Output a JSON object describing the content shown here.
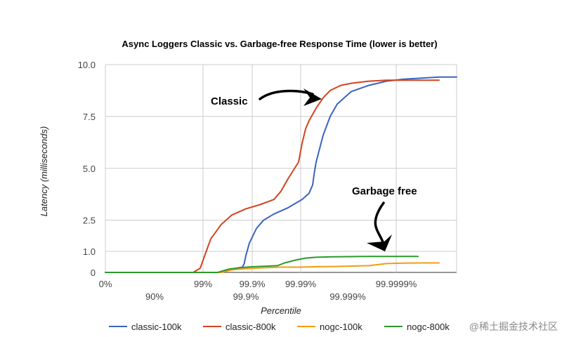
{
  "chart_data": {
    "type": "line",
    "title": "Async Loggers Classic vs. Garbage-free Response Time (lower is better)",
    "xlabel": "Percentile",
    "ylabel": "Latency (milliseconds)",
    "ylim": [
      0,
      10
    ],
    "y_ticks": [
      "0",
      "1.0",
      "2.5",
      "5.0",
      "7.5",
      "10.0"
    ],
    "x_ticks_upper": [
      "0%",
      "99%",
      "99.9%",
      "99.99%",
      "99.9999%"
    ],
    "x_ticks_lower": [
      "90%",
      "99.9%",
      "99.999%"
    ],
    "xlim": [
      0,
      1
    ],
    "grid": true,
    "legend_position": "bottom",
    "series": [
      {
        "name": "classic-100k",
        "color": "#3a64c0",
        "x": [
          0,
          0.33,
          0.36,
          0.39,
          0.395,
          0.4,
          0.41,
          0.43,
          0.45,
          0.48,
          0.52,
          0.56,
          0.58,
          0.59,
          0.595,
          0.6,
          0.62,
          0.64,
          0.66,
          0.7,
          0.75,
          0.8,
          0.85,
          0.9,
          0.95,
          1.0
        ],
        "y": [
          0,
          0,
          0.15,
          0.25,
          0.4,
          0.8,
          1.4,
          2.1,
          2.5,
          2.8,
          3.1,
          3.5,
          3.8,
          4.2,
          4.8,
          5.3,
          6.6,
          7.5,
          8.1,
          8.7,
          9.0,
          9.2,
          9.3,
          9.35,
          9.4,
          9.4
        ]
      },
      {
        "name": "classic-800k",
        "color": "#d2441f",
        "x": [
          0,
          0.25,
          0.27,
          0.285,
          0.3,
          0.33,
          0.36,
          0.4,
          0.44,
          0.48,
          0.5,
          0.52,
          0.55,
          0.56,
          0.57,
          0.58,
          0.6,
          0.62,
          0.64,
          0.67,
          0.7,
          0.75,
          0.8,
          0.85,
          0.9,
          0.95
        ],
        "y": [
          0,
          0,
          0.2,
          0.9,
          1.6,
          2.3,
          2.75,
          3.05,
          3.25,
          3.5,
          3.9,
          4.5,
          5.3,
          6.2,
          6.9,
          7.3,
          7.9,
          8.4,
          8.75,
          9.0,
          9.1,
          9.2,
          9.25,
          9.25,
          9.25,
          9.25
        ]
      },
      {
        "name": "nogc-100k",
        "color": "#f39c12",
        "x": [
          0,
          0.33,
          0.36,
          0.4,
          0.45,
          0.5,
          0.55,
          0.6,
          0.65,
          0.7,
          0.75,
          0.78,
          0.8,
          0.85,
          0.9,
          0.95
        ],
        "y": [
          0,
          0,
          0.12,
          0.18,
          0.22,
          0.25,
          0.25,
          0.27,
          0.28,
          0.3,
          0.32,
          0.38,
          0.42,
          0.44,
          0.45,
          0.45
        ]
      },
      {
        "name": "nogc-800k",
        "color": "#2a9a2a",
        "x": [
          0,
          0.32,
          0.35,
          0.38,
          0.42,
          0.49,
          0.51,
          0.54,
          0.57,
          0.6,
          0.65,
          0.7,
          0.75,
          0.8,
          0.85,
          0.89
        ],
        "y": [
          0,
          0,
          0.15,
          0.22,
          0.27,
          0.32,
          0.45,
          0.58,
          0.68,
          0.72,
          0.74,
          0.75,
          0.76,
          0.76,
          0.76,
          0.76
        ]
      }
    ],
    "annotations": [
      {
        "label": "Classic"
      },
      {
        "label": "Garbage free"
      }
    ]
  },
  "watermark": "@稀土掘金技术社区"
}
